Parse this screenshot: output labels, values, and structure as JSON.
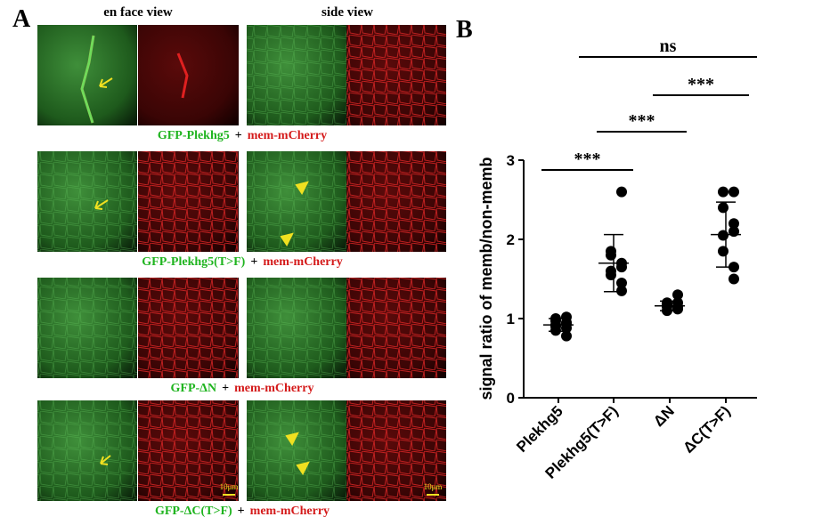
{
  "panel_a": {
    "label": "A",
    "columns": [
      "en face view",
      "side view"
    ],
    "rows": [
      {
        "gfp": "GFP-Plekhg5",
        "plus": "+",
        "mem": "mem-mCherry"
      },
      {
        "gfp": "GFP-Plekhg5(T>F)",
        "plus": "+",
        "mem": "mem-mCherry"
      },
      {
        "gfp": "GFP-ΔN",
        "plus": "+",
        "mem": "mem-mCherry"
      },
      {
        "gfp": "GFP-ΔC(T>F)",
        "plus": "+",
        "mem": "mem-mCherry"
      }
    ],
    "scale_bars": [
      "10μm",
      "10μm"
    ]
  },
  "chart_data": {
    "type": "dotplot",
    "panel_label": "B",
    "y_label": "signal ratio of memb/non-memb",
    "categories": [
      "Plekhg5",
      "Plekhg5(T>F)",
      "ΔN",
      "ΔC(T>F)"
    ],
    "points": [
      [
        0.95,
        1.0,
        0.92,
        0.88,
        1.02,
        0.85,
        0.97,
        0.78,
        0.93,
        0.9
      ],
      [
        2.6,
        1.85,
        1.8,
        1.7,
        1.65,
        1.6,
        1.55,
        1.45,
        1.35
      ],
      [
        1.3,
        1.2,
        1.18,
        1.15,
        1.12,
        1.1,
        1.15,
        1.2
      ],
      [
        2.6,
        2.6,
        2.4,
        2.2,
        2.1,
        2.05,
        1.85,
        1.65,
        1.5
      ]
    ],
    "mean": [
      0.92,
      1.7,
      1.16,
      2.06
    ],
    "sd": [
      0.08,
      0.36,
      0.06,
      0.41
    ],
    "color": "#000000",
    "ylim": [
      0,
      3
    ],
    "yticks": [
      0,
      1,
      2,
      3
    ],
    "annotations": [
      "***",
      "***",
      "***",
      "ns"
    ]
  }
}
